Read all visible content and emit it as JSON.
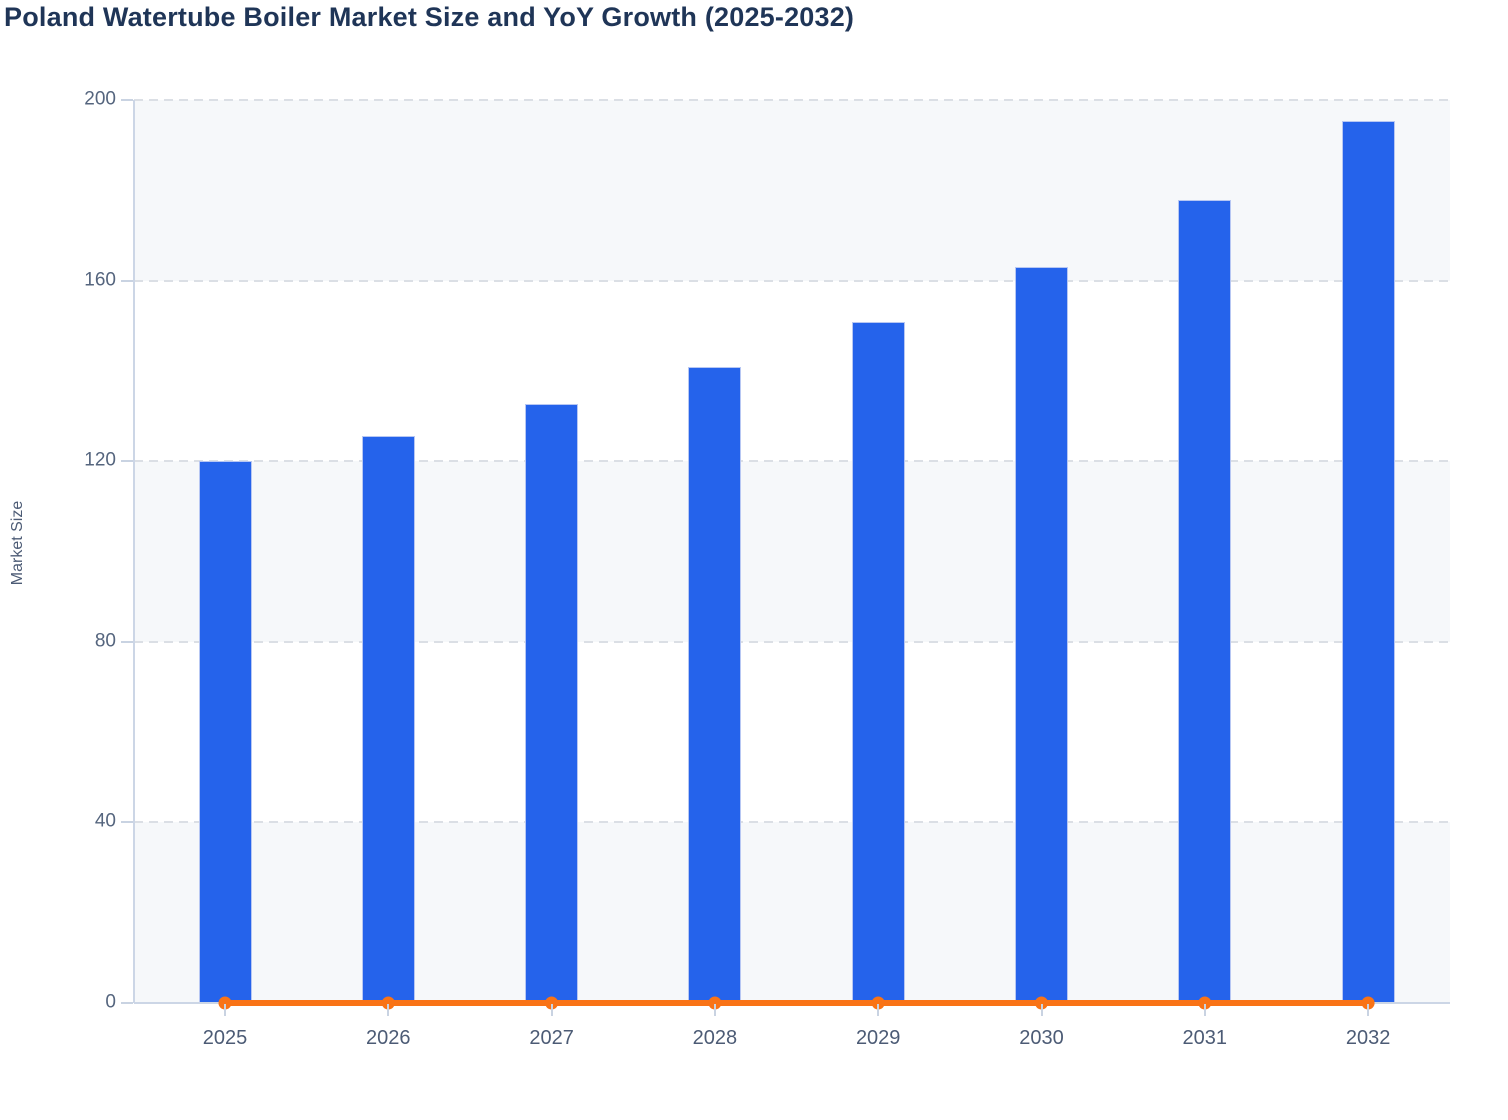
{
  "header": {
    "title": "Poland Watertube Boiler Market Size and YoY Growth (2025-2032)"
  },
  "chart_data": {
    "type": "bar",
    "title": "Poland Watertube Boiler Market Size and YoY Growth (2025-2032)",
    "categories": [
      "2025",
      "2026",
      "2027",
      "2028",
      "2029",
      "2030",
      "2031",
      "2032"
    ],
    "series": [
      {
        "name": "Market Size",
        "type": "bar",
        "color": "#2563eb",
        "values": [
          120,
          125.6,
          132.6,
          140.8,
          150.9,
          163.1,
          177.8,
          195.4
        ]
      },
      {
        "name": "YoY Growth",
        "type": "line",
        "color": "#f97316",
        "values": [
          0,
          0,
          0,
          0,
          0,
          0,
          0,
          0
        ]
      }
    ],
    "xlabel": "",
    "ylabel": "Market Size",
    "ylim": [
      0,
      200
    ],
    "yticks": [
      0,
      40,
      80,
      120,
      160,
      200
    ],
    "grid": "horizontal-dashed",
    "plot_bands": "alternating-horizontal",
    "legend_position": "none"
  },
  "colors": {
    "bar": "#2563eb",
    "bar_border": "#b7c7f3",
    "line": "#f97316",
    "title_text": "#1f3557",
    "axis_title_text": "#4c5b75",
    "tick_label_text": "#55657e",
    "gridline": "#dbdfe5",
    "axis_line": "#ccd6e6",
    "band_fill": "#f6f8fa",
    "background": "#ffffff"
  }
}
